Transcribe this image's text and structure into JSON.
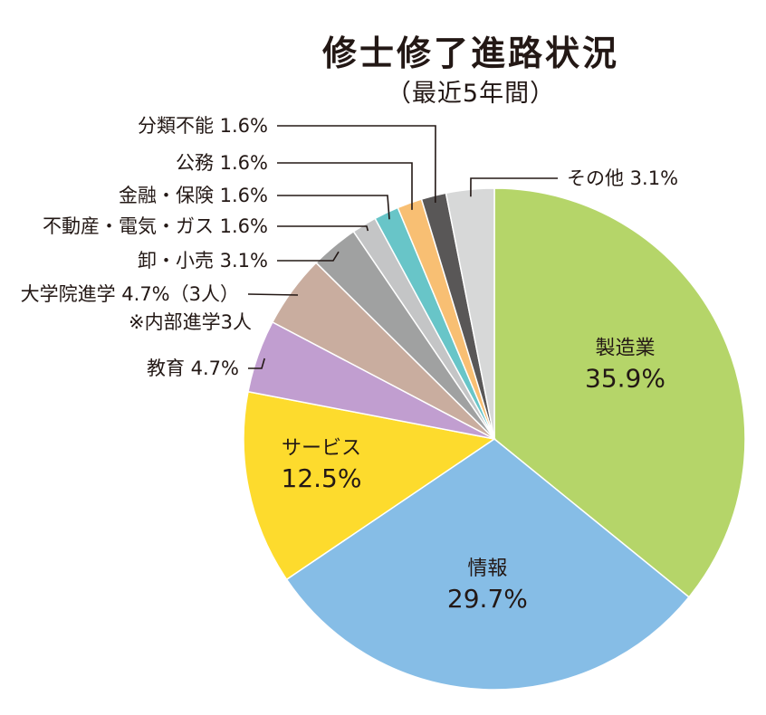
{
  "chart_data": {
    "type": "pie",
    "title": "修士修了進路状況",
    "subtitle": "（最近5年間）",
    "slices": [
      {
        "name": "製造業",
        "value": 35.9,
        "label": "35.9%",
        "color": "#b5d569"
      },
      {
        "name": "情報",
        "value": 29.7,
        "label": "29.7%",
        "color": "#86bde6"
      },
      {
        "name": "サービス",
        "value": 12.5,
        "label": "12.5%",
        "color": "#fddb2d"
      },
      {
        "name": "教育",
        "value": 4.7,
        "label": "教育  4.7%",
        "color": "#c19ed0"
      },
      {
        "name": "大学院進学",
        "value": 4.7,
        "label": "大学院進学  4.7%（3人）",
        "note": "※内部進学3人",
        "color": "#c9ad9f"
      },
      {
        "name": "卸・小売",
        "value": 3.1,
        "label": "卸・小売  3.1%",
        "color": "#a0a1a1"
      },
      {
        "name": "不動産・電気・ガス",
        "value": 1.6,
        "label": "不動産・電気・ガス  1.6%",
        "color": "#c4c5c6"
      },
      {
        "name": "金融・保険",
        "value": 1.6,
        "label": "金融・保険  1.6%",
        "color": "#68c5c8"
      },
      {
        "name": "公務",
        "value": 1.6,
        "label": "公務  1.6%",
        "color": "#f8bf73"
      },
      {
        "name": "分類不能",
        "value": 1.6,
        "label": "分類不能  1.6%",
        "color": "#595757"
      },
      {
        "name": "その他",
        "value": 3.1,
        "label": "その他  3.1%",
        "color": "#d7d8d8"
      }
    ]
  }
}
